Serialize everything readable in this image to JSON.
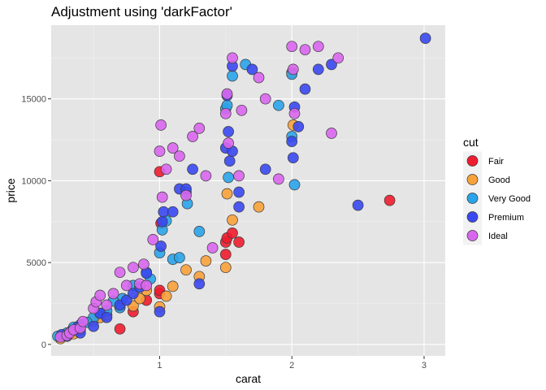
{
  "chart_data": {
    "type": "scatter",
    "title": "Adjustment using 'darkFactor'",
    "xlabel": "carat",
    "ylabel": "price",
    "xlim": [
      0.18,
      3.16
    ],
    "ylim": [
      -700,
      19500
    ],
    "x_ticks": [
      1,
      2,
      3
    ],
    "y_ticks": [
      0,
      5000,
      10000,
      15000
    ],
    "x_tick_labels": [
      "1",
      "2",
      "3"
    ],
    "y_tick_labels": [
      "0",
      "5000",
      "10000",
      "15000"
    ],
    "grid": true,
    "background": "#e5e5e5",
    "legend": {
      "title": "cut",
      "position": "right"
    },
    "series": [
      {
        "name": "Fair",
        "color": "#ee1c2e",
        "x": [
          1.0,
          0.7,
          1.5,
          1.51,
          1.6,
          1.5,
          1.55,
          2.74,
          1.01,
          1.0,
          0.9,
          0.8,
          1.0
        ],
        "y": [
          10550,
          950,
          6250,
          6500,
          6250,
          5500,
          6800,
          8800,
          7400,
          3100,
          2700,
          2000,
          3300
        ]
      },
      {
        "name": "Good",
        "color": "#f8a13a",
        "x": [
          0.25,
          0.3,
          0.35,
          0.5,
          0.55,
          0.7,
          0.8,
          0.85,
          0.9,
          1.0,
          1.05,
          1.1,
          1.2,
          1.3,
          1.5,
          1.51,
          1.55,
          1.75,
          2.0,
          2.01,
          0.4,
          0.6,
          1.35
        ],
        "y": [
          350,
          550,
          650,
          1450,
          1650,
          2300,
          2350,
          2800,
          3300,
          2300,
          2950,
          3550,
          4550,
          4150,
          4700,
          9200,
          7600,
          8400,
          16600,
          13400,
          900,
          1800,
          5100
        ]
      },
      {
        "name": "Very Good",
        "color": "#2aa3ea",
        "x": [
          0.23,
          0.3,
          0.35,
          0.4,
          0.5,
          0.55,
          0.6,
          0.7,
          0.72,
          0.8,
          0.9,
          0.93,
          1.0,
          1.02,
          1.05,
          1.1,
          1.2,
          1.21,
          1.3,
          1.5,
          1.51,
          1.52,
          1.55,
          1.65,
          1.9,
          2.0,
          2.02,
          2.0,
          0.45,
          0.65,
          1.15
        ],
        "y": [
          500,
          700,
          1050,
          1200,
          1650,
          1900,
          2050,
          2250,
          2800,
          3600,
          4400,
          4000,
          5600,
          7000,
          7550,
          5200,
          9300,
          8600,
          6900,
          14400,
          14600,
          10200,
          16400,
          17100,
          14600,
          12700,
          9750,
          16500,
          1350,
          2650,
          5300
        ]
      },
      {
        "name": "Premium",
        "color": "#3a48f0",
        "x": [
          0.26,
          0.3,
          0.33,
          0.38,
          0.4,
          0.5,
          0.55,
          0.6,
          0.7,
          0.75,
          0.8,
          0.85,
          0.9,
          1.0,
          1.01,
          1.02,
          1.03,
          1.1,
          1.15,
          1.2,
          1.25,
          1.3,
          1.5,
          1.51,
          1.52,
          1.53,
          1.55,
          1.6,
          1.7,
          1.8,
          2.0,
          2.01,
          2.02,
          2.1,
          2.2,
          2.3,
          2.5,
          3.01,
          1.55,
          1.6,
          2.05
        ],
        "y": [
          600,
          500,
          800,
          1050,
          700,
          1100,
          1900,
          1650,
          2400,
          2700,
          3100,
          3500,
          4350,
          2000,
          6000,
          7500,
          8100,
          8100,
          9500,
          9500,
          10700,
          3700,
          12000,
          15200,
          13000,
          11200,
          17000,
          8400,
          16800,
          10700,
          12400,
          11400,
          14500,
          15600,
          16800,
          17100,
          8500,
          18700,
          11800,
          9300,
          13300
        ]
      },
      {
        "name": "Ideal",
        "color": "#d966ee",
        "x": [
          0.25,
          0.3,
          0.32,
          0.35,
          0.4,
          0.42,
          0.5,
          0.52,
          0.55,
          0.6,
          0.7,
          0.75,
          0.8,
          0.85,
          0.9,
          1.0,
          1.01,
          1.02,
          1.05,
          1.1,
          1.15,
          1.2,
          1.25,
          1.3,
          1.35,
          1.5,
          1.51,
          1.52,
          1.55,
          1.6,
          1.62,
          1.75,
          1.8,
          1.9,
          2.0,
          2.01,
          2.02,
          2.1,
          2.2,
          2.3,
          2.35,
          0.65,
          0.88,
          0.95,
          1.4
        ],
        "y": [
          450,
          550,
          700,
          900,
          1000,
          1400,
          2200,
          2600,
          3000,
          2400,
          4400,
          3600,
          4700,
          3700,
          3600,
          11800,
          13400,
          9000,
          10700,
          12000,
          11500,
          9100,
          12700,
          13200,
          10300,
          14100,
          15300,
          12300,
          17500,
          10300,
          14300,
          16300,
          15000,
          10100,
          18200,
          16800,
          14100,
          18000,
          18200,
          12900,
          17500,
          3100,
          4900,
          6400,
          5900
        ]
      }
    ]
  }
}
